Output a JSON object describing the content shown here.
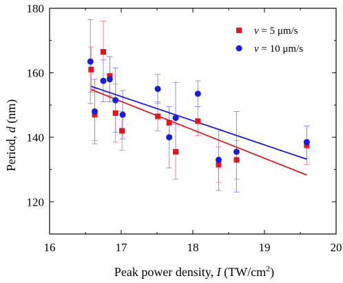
{
  "chart_data": {
    "type": "scatter",
    "xlabel_prefix": "Peak power density, ",
    "xlabel_symbol": "I",
    "xlabel_unit_a": " (TW/cm",
    "xlabel_unit_sup": "2",
    "xlabel_unit_b": ")",
    "ylabel_prefix": "Period, ",
    "ylabel_symbol": "d",
    "ylabel_unit": " (nm)",
    "xlim": [
      16,
      20
    ],
    "ylim": [
      110,
      180
    ],
    "x_ticks": [
      16,
      17,
      18,
      19,
      20
    ],
    "y_ticks": [
      120,
      140,
      160,
      180
    ],
    "grid": false,
    "legend_position": "top-right",
    "series": [
      {
        "name_symbol": "v",
        "name_rest": " = 5 μm/s",
        "color": "#e8141c",
        "marker": "square",
        "points": [
          {
            "x": 16.58,
            "y": 161.0,
            "err": 7.0
          },
          {
            "x": 16.63,
            "y": 147.0,
            "err": 8.0
          },
          {
            "x": 16.75,
            "y": 166.5,
            "err": 9.5
          },
          {
            "x": 16.84,
            "y": 159.0,
            "err": 6.0
          },
          {
            "x": 16.92,
            "y": 147.5,
            "err": 9.0
          },
          {
            "x": 17.01,
            "y": 142.0,
            "err": 6.0
          },
          {
            "x": 17.51,
            "y": 146.5,
            "err": 4.5
          },
          {
            "x": 17.67,
            "y": 144.5,
            "err": 5.0
          },
          {
            "x": 17.76,
            "y": 135.5,
            "err": 8.5
          },
          {
            "x": 18.07,
            "y": 145.0,
            "err": 4.5
          },
          {
            "x": 18.36,
            "y": 131.5,
            "err": 5.5
          },
          {
            "x": 18.61,
            "y": 133.0,
            "err": 6.0
          },
          {
            "x": 19.59,
            "y": 137.5,
            "err": 6.0
          }
        ],
        "fit": {
          "x": [
            16.58,
            19.59
          ],
          "y": [
            154.8,
            128.3
          ]
        }
      },
      {
        "name_symbol": "v",
        "name_rest": " = 10 μm/s",
        "color": "#1a1ae6",
        "marker": "circle",
        "points": [
          {
            "x": 16.57,
            "y": 163.5,
            "err": 13.0
          },
          {
            "x": 16.63,
            "y": 148.0,
            "err": 10.0
          },
          {
            "x": 16.75,
            "y": 157.5,
            "err": 6.5
          },
          {
            "x": 16.84,
            "y": 158.0,
            "err": 7.0
          },
          {
            "x": 16.92,
            "y": 151.5,
            "err": 10.0
          },
          {
            "x": 17.02,
            "y": 147.0,
            "err": 7.5
          },
          {
            "x": 17.51,
            "y": 155.0,
            "err": 4.5
          },
          {
            "x": 17.67,
            "y": 140.0,
            "err": 9.5
          },
          {
            "x": 17.76,
            "y": 146.0,
            "err": 11.0
          },
          {
            "x": 18.07,
            "y": 153.5,
            "err": 4.0
          },
          {
            "x": 18.36,
            "y": 133.0,
            "err": 9.5
          },
          {
            "x": 18.61,
            "y": 135.5,
            "err": 12.5
          },
          {
            "x": 19.59,
            "y": 138.5,
            "err": 5.0
          }
        ],
        "fit": {
          "x": [
            16.58,
            19.59
          ],
          "y": [
            155.8,
            133.2
          ]
        }
      }
    ]
  }
}
